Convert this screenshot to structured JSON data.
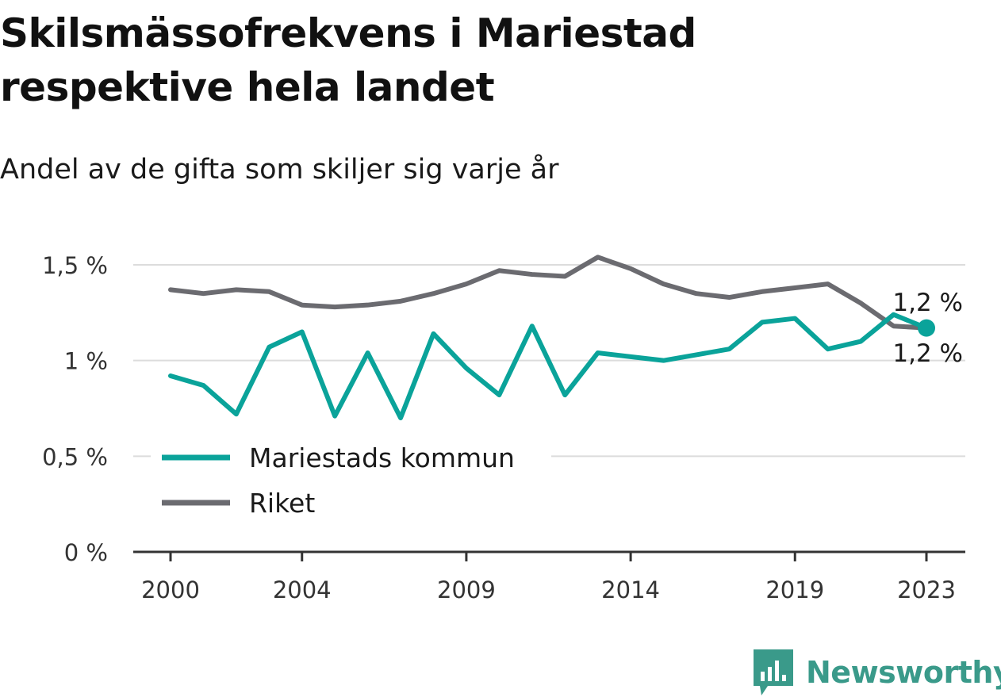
{
  "header": {
    "title": "Skilsmässofrekvens i Mariestad respektive hela landet",
    "subtitle": "Andel av de gifta som skiljer sig varje år"
  },
  "chart_data": {
    "type": "line",
    "x": [
      2000,
      2001,
      2002,
      2003,
      2004,
      2005,
      2006,
      2007,
      2008,
      2009,
      2010,
      2011,
      2012,
      2013,
      2014,
      2015,
      2016,
      2017,
      2018,
      2019,
      2020,
      2021,
      2022,
      2023
    ],
    "series": [
      {
        "name": "Mariestads kommun",
        "color": "#0aa39a",
        "values": [
          0.92,
          0.87,
          0.72,
          1.07,
          1.15,
          0.71,
          1.04,
          0.7,
          1.14,
          0.96,
          0.82,
          1.18,
          0.82,
          1.04,
          1.02,
          1.0,
          1.03,
          1.06,
          1.2,
          1.22,
          1.06,
          1.1,
          1.24,
          1.17
        ]
      },
      {
        "name": "Riket",
        "color": "#6b6b70",
        "values": [
          1.37,
          1.35,
          1.37,
          1.36,
          1.29,
          1.28,
          1.29,
          1.31,
          1.35,
          1.4,
          1.47,
          1.45,
          1.44,
          1.54,
          1.48,
          1.4,
          1.35,
          1.33,
          1.36,
          1.38,
          1.4,
          1.3,
          1.18,
          1.17
        ]
      }
    ],
    "xticks": [
      2000,
      2004,
      2009,
      2014,
      2019,
      2023
    ],
    "xtick_labels": [
      "2000",
      "2004",
      "2009",
      "2014",
      "2019",
      "2023"
    ],
    "yticks": [
      0,
      0.5,
      1,
      1.5
    ],
    "ytick_labels": [
      "0 %",
      "0,5 %",
      "1 %",
      "1,5 %"
    ],
    "ylim": [
      0,
      1.5
    ],
    "xlim": [
      2000,
      2023
    ],
    "grid": true,
    "legend_position": "bottom-left",
    "end_labels": [
      {
        "series": "Riket",
        "text": "1,2 %",
        "position": "above"
      },
      {
        "series": "Mariestads kommun",
        "text": "1,2 %",
        "position": "below"
      }
    ]
  },
  "brand": {
    "name": "Newsworthy",
    "icon": "newsworthy-logo-icon",
    "color": "#3a9a8a"
  }
}
